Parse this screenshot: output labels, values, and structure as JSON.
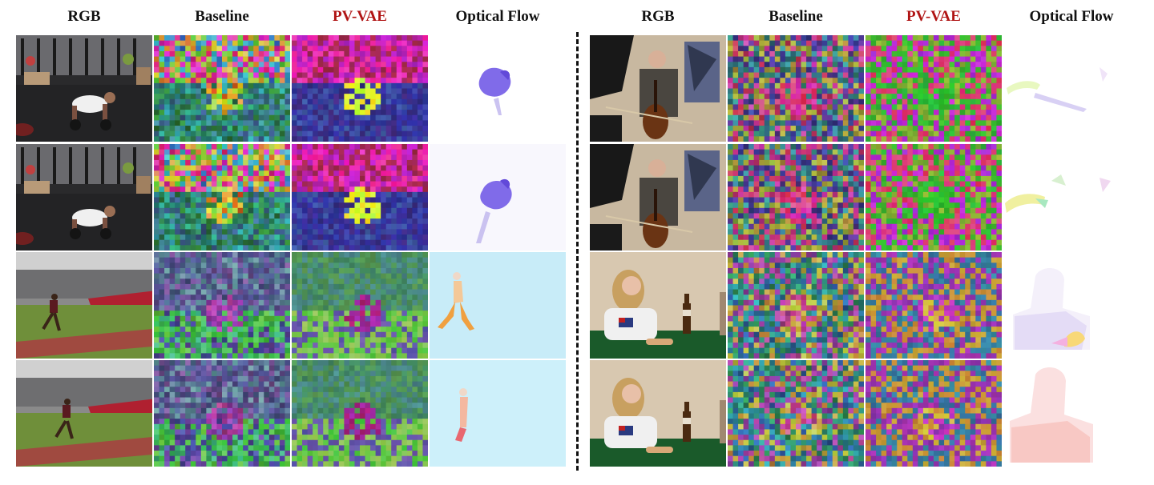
{
  "headers": {
    "left": [
      "RGB",
      "Baseline",
      "PV-VAE",
      "Optical Flow"
    ],
    "right": [
      "RGB",
      "Baseline",
      "PV-VAE",
      "Optical Flow"
    ]
  },
  "accent_color": "#b01414",
  "accent_column": "PV-VAE",
  "panel_kinds": [
    "rgb-frame",
    "baseline-feature-map",
    "pv-vae-feature-map",
    "optical-flow-map"
  ],
  "scenes": {
    "left": [
      "gym-pushup",
      "gym-pushup",
      "track-jumper",
      "track-jumper"
    ],
    "right": [
      "cellist",
      "cellist",
      "woman-at-table",
      "woman-at-table"
    ]
  }
}
